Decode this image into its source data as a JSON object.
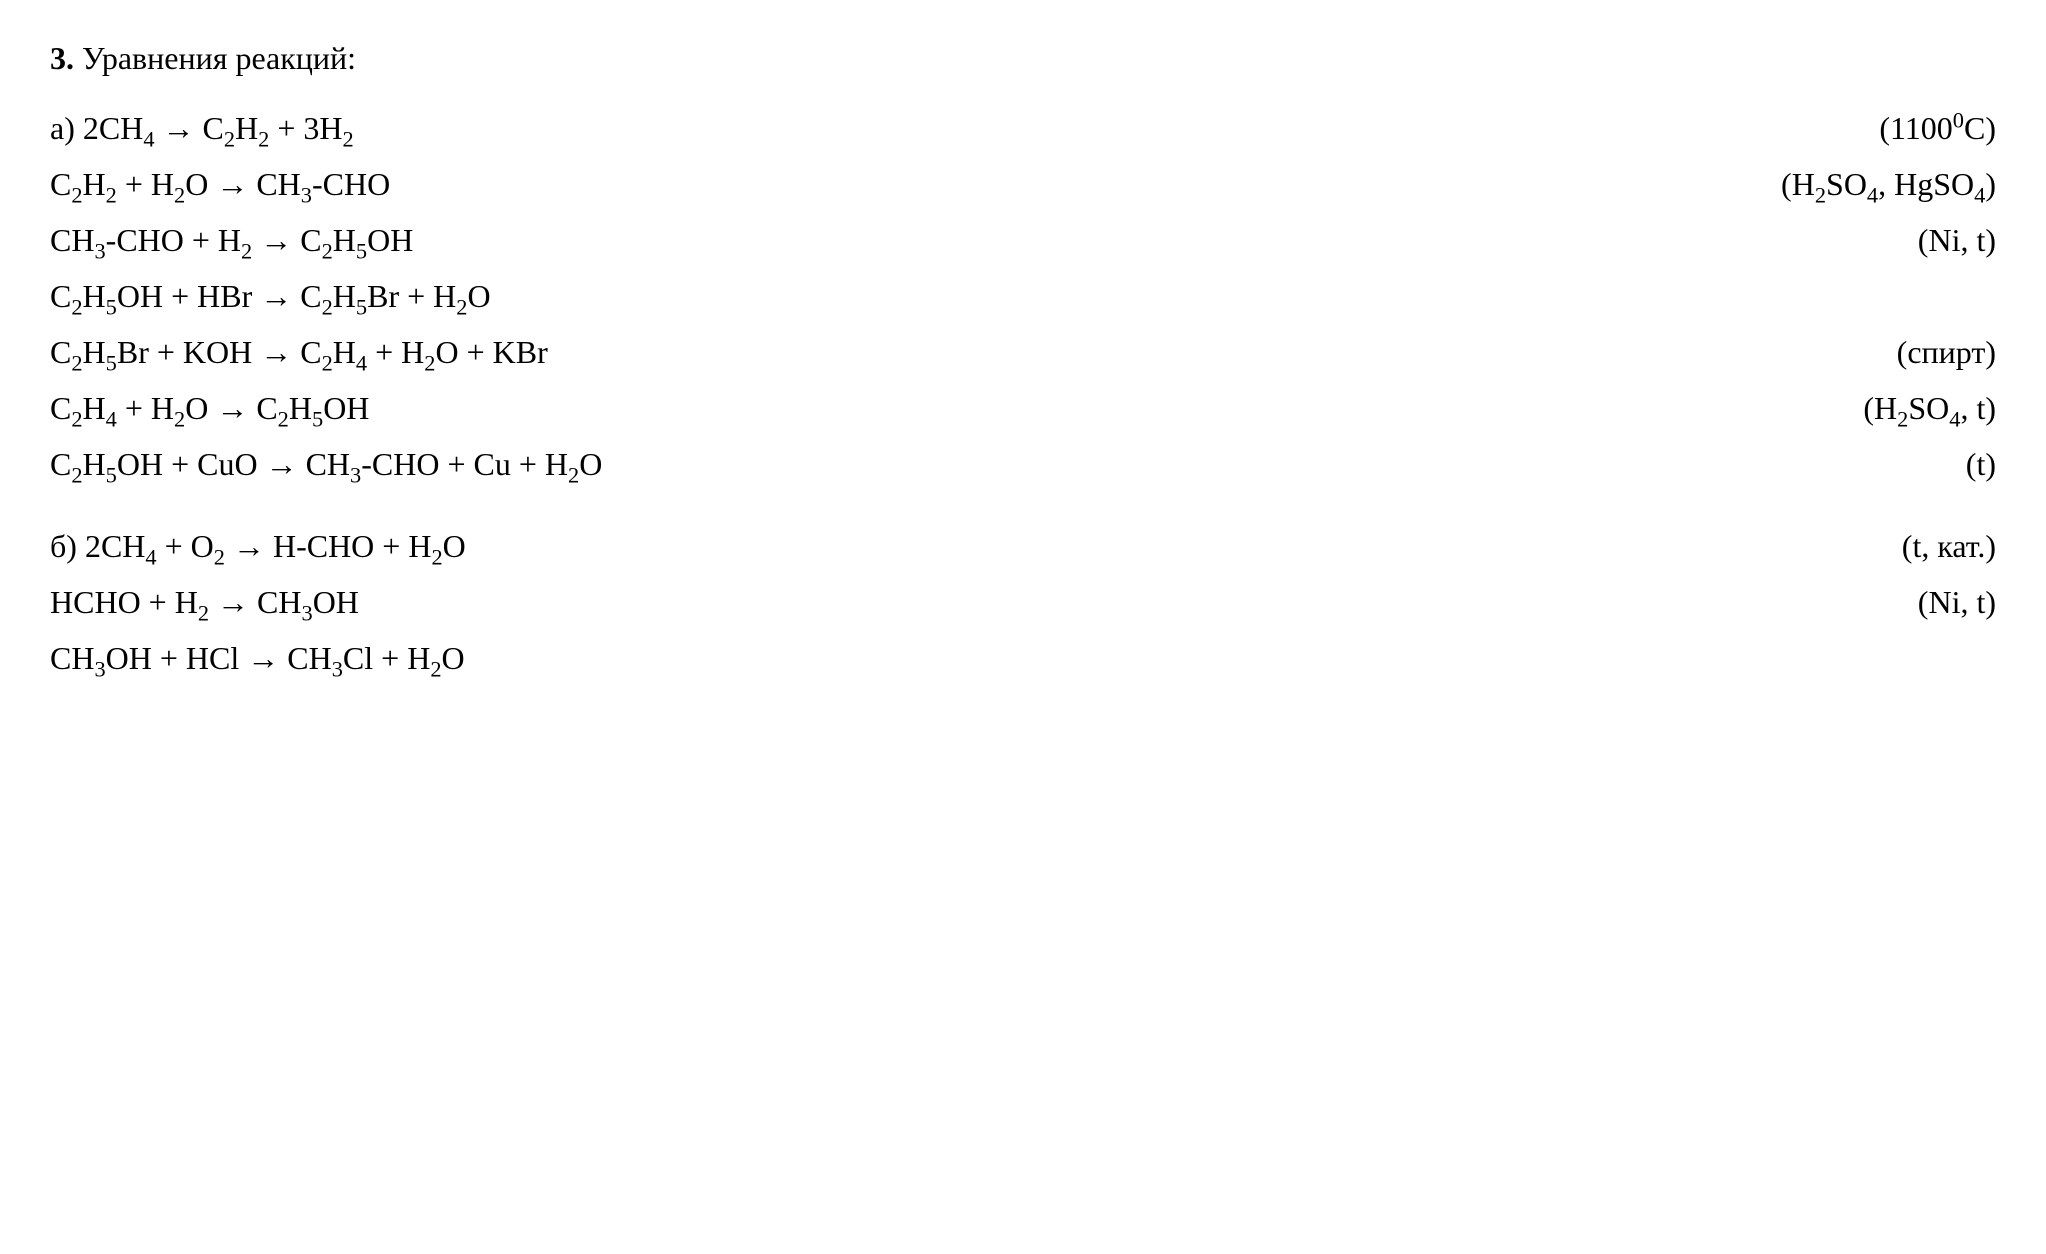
{
  "colors": {
    "background": "#ffffff",
    "text": "#000000"
  },
  "typography": {
    "font_family": "Times New Roman, serif",
    "font_size_pt": 24,
    "title_weight": "bold"
  },
  "header": {
    "number": "3.",
    "title": "Уравнения реакций:"
  },
  "section_a": {
    "label": "а)",
    "equations": [
      {
        "left": {
          "tokens": [
            {
              "t": "2CH"
            },
            {
              "t": "4",
              "sub": true
            },
            {
              "t": " → C"
            },
            {
              "t": "2",
              "sub": true
            },
            {
              "t": "H"
            },
            {
              "t": "2",
              "sub": true
            },
            {
              "t": " + 3H"
            },
            {
              "t": "2",
              "sub": true
            }
          ]
        },
        "right": {
          "tokens": [
            {
              "t": "(1100"
            },
            {
              "t": "0",
              "sup": true
            },
            {
              "t": "C)"
            }
          ]
        }
      },
      {
        "left": {
          "tokens": [
            {
              "t": "C"
            },
            {
              "t": "2",
              "sub": true
            },
            {
              "t": "H"
            },
            {
              "t": "2",
              "sub": true
            },
            {
              "t": " + H"
            },
            {
              "t": "2",
              "sub": true
            },
            {
              "t": "O → CH"
            },
            {
              "t": "3",
              "sub": true
            },
            {
              "t": "-CHO"
            }
          ]
        },
        "right": {
          "tokens": [
            {
              "t": "(H"
            },
            {
              "t": "2",
              "sub": true
            },
            {
              "t": "SO"
            },
            {
              "t": "4",
              "sub": true
            },
            {
              "t": ", HgSO"
            },
            {
              "t": "4",
              "sub": true
            },
            {
              "t": ")"
            }
          ]
        }
      },
      {
        "left": {
          "tokens": [
            {
              "t": "CH"
            },
            {
              "t": "3",
              "sub": true
            },
            {
              "t": "-CHO + H"
            },
            {
              "t": "2",
              "sub": true
            },
            {
              "t": " → C"
            },
            {
              "t": "2",
              "sub": true
            },
            {
              "t": "H"
            },
            {
              "t": "5",
              "sub": true
            },
            {
              "t": "OH"
            }
          ]
        },
        "right": {
          "tokens": [
            {
              "t": "(Ni, t)"
            }
          ]
        }
      },
      {
        "left": {
          "tokens": [
            {
              "t": "C"
            },
            {
              "t": "2",
              "sub": true
            },
            {
              "t": "H"
            },
            {
              "t": "5",
              "sub": true
            },
            {
              "t": "OH + HBr → C"
            },
            {
              "t": "2",
              "sub": true
            },
            {
              "t": "H"
            },
            {
              "t": "5",
              "sub": true
            },
            {
              "t": "Br + H"
            },
            {
              "t": "2",
              "sub": true
            },
            {
              "t": "O"
            }
          ]
        },
        "right": {
          "tokens": []
        }
      },
      {
        "left": {
          "tokens": [
            {
              "t": "C"
            },
            {
              "t": "2",
              "sub": true
            },
            {
              "t": "H"
            },
            {
              "t": "5",
              "sub": true
            },
            {
              "t": "Br + KOH → C"
            },
            {
              "t": "2",
              "sub": true
            },
            {
              "t": "H"
            },
            {
              "t": "4",
              "sub": true
            },
            {
              "t": " + H"
            },
            {
              "t": "2",
              "sub": true
            },
            {
              "t": "O + KBr"
            }
          ]
        },
        "right": {
          "tokens": [
            {
              "t": "(спирт)"
            }
          ]
        }
      },
      {
        "left": {
          "tokens": [
            {
              "t": "C"
            },
            {
              "t": "2",
              "sub": true
            },
            {
              "t": "H"
            },
            {
              "t": "4",
              "sub": true
            },
            {
              "t": " + H"
            },
            {
              "t": "2",
              "sub": true
            },
            {
              "t": "O → C"
            },
            {
              "t": "2",
              "sub": true
            },
            {
              "t": "H"
            },
            {
              "t": "5",
              "sub": true
            },
            {
              "t": "OH"
            }
          ]
        },
        "right": {
          "tokens": [
            {
              "t": "(H"
            },
            {
              "t": "2",
              "sub": true
            },
            {
              "t": "SO"
            },
            {
              "t": "4",
              "sub": true
            },
            {
              "t": ", t)"
            }
          ]
        }
      },
      {
        "left": {
          "tokens": [
            {
              "t": "C"
            },
            {
              "t": "2",
              "sub": true
            },
            {
              "t": "H"
            },
            {
              "t": "5",
              "sub": true
            },
            {
              "t": "OH + CuO → CH"
            },
            {
              "t": "3",
              "sub": true
            },
            {
              "t": "-CHO + Cu + H"
            },
            {
              "t": "2",
              "sub": true
            },
            {
              "t": "O"
            }
          ]
        },
        "right": {
          "tokens": [
            {
              "t": "(t)"
            }
          ]
        }
      }
    ]
  },
  "section_b": {
    "label": "б)",
    "equations": [
      {
        "left": {
          "tokens": [
            {
              "t": "2CH"
            },
            {
              "t": "4",
              "sub": true
            },
            {
              "t": " + O"
            },
            {
              "t": "2",
              "sub": true
            },
            {
              "t": " → H-CHO + H"
            },
            {
              "t": "2",
              "sub": true
            },
            {
              "t": "O"
            }
          ]
        },
        "right": {
          "tokens": [
            {
              "t": "(t, кат.)"
            }
          ]
        }
      },
      {
        "left": {
          "tokens": [
            {
              "t": "HCHO + H"
            },
            {
              "t": "2",
              "sub": true
            },
            {
              "t": " → CH"
            },
            {
              "t": "3",
              "sub": true
            },
            {
              "t": "OH"
            }
          ]
        },
        "right": {
          "tokens": [
            {
              "t": "(Ni, t)"
            }
          ]
        }
      },
      {
        "left": {
          "tokens": [
            {
              "t": "CH"
            },
            {
              "t": "3",
              "sub": true
            },
            {
              "t": "OH + HCl → CH"
            },
            {
              "t": "3",
              "sub": true
            },
            {
              "t": "Cl + H"
            },
            {
              "t": "2",
              "sub": true
            },
            {
              "t": "O"
            }
          ]
        },
        "right": {
          "tokens": []
        }
      }
    ]
  }
}
